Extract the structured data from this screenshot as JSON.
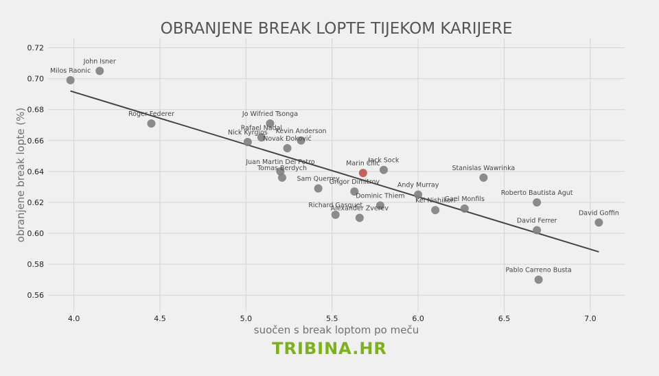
{
  "chart_data": {
    "type": "scatter",
    "title": "OBRANJENE BREAK LOPTE TIJEKOM KARIJERE",
    "xlabel": "suočen s break loptom po meču",
    "ylabel": "obranjene break lopte (%)",
    "xlim": [
      3.85,
      7.2
    ],
    "ylim": [
      0.549,
      0.726
    ],
    "xticks": [
      "4.0",
      "4.5",
      "5.0",
      "5.5",
      "6.0",
      "6.5",
      "7.0"
    ],
    "yticks": [
      "0.56",
      "0.58",
      "0.60",
      "0.62",
      "0.64",
      "0.66",
      "0.68",
      "0.70",
      "0.72"
    ],
    "grid": true,
    "point_color": "#808080",
    "highlight_color": "#c0504d",
    "trend_color": "#444444",
    "trendline": {
      "x": [
        3.98,
        7.05
      ],
      "y": [
        0.692,
        0.588
      ]
    },
    "points": [
      {
        "name": "Milos Raonic",
        "x": 3.98,
        "y": 0.699
      },
      {
        "name": "John Isner",
        "x": 4.15,
        "y": 0.705
      },
      {
        "name": "Roger Federer",
        "x": 4.45,
        "y": 0.671
      },
      {
        "name": "Jo Wifried Tsonga",
        "x": 5.14,
        "y": 0.671
      },
      {
        "name": "Rafael Nadal",
        "x": 5.09,
        "y": 0.662
      },
      {
        "name": "Nick Kyrgios",
        "x": 5.01,
        "y": 0.659
      },
      {
        "name": "Kevin Anderson",
        "x": 5.32,
        "y": 0.66
      },
      {
        "name": "Novak Đoković",
        "x": 5.24,
        "y": 0.655
      },
      {
        "name": "Juan Martin Del Potro",
        "x": 5.2,
        "y": 0.64
      },
      {
        "name": "Tomas Berdych",
        "x": 5.21,
        "y": 0.636
      },
      {
        "name": "Marin Čilić",
        "x": 5.68,
        "y": 0.639,
        "highlight": true
      },
      {
        "name": "Jack Sock",
        "x": 5.8,
        "y": 0.641
      },
      {
        "name": "Sam Querrey",
        "x": 5.42,
        "y": 0.629
      },
      {
        "name": "Grigor Dimitrov",
        "x": 5.63,
        "y": 0.627
      },
      {
        "name": "Dominic Thiem",
        "x": 5.78,
        "y": 0.618
      },
      {
        "name": "Richard Gasquet",
        "x": 5.52,
        "y": 0.612
      },
      {
        "name": "Alexander Zverev",
        "x": 5.66,
        "y": 0.61
      },
      {
        "name": "Andy Murray",
        "x": 6.0,
        "y": 0.625
      },
      {
        "name": "Kei Nishikori",
        "x": 6.1,
        "y": 0.615
      },
      {
        "name": "Gael Monfils",
        "x": 6.27,
        "y": 0.616
      },
      {
        "name": "Stanislas Wawrinka",
        "x": 6.38,
        "y": 0.636
      },
      {
        "name": "Roberto Bautista Agut",
        "x": 6.69,
        "y": 0.62
      },
      {
        "name": "David Ferrer",
        "x": 6.69,
        "y": 0.602
      },
      {
        "name": "David Goffin",
        "x": 7.05,
        "y": 0.607
      },
      {
        "name": "Pablo Carreno Busta",
        "x": 6.7,
        "y": 0.57
      }
    ]
  },
  "branding": {
    "text": "TRIBINA.HR"
  }
}
